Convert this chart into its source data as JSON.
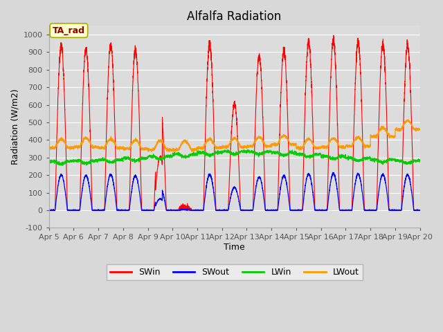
{
  "title": "Alfalfa Radiation",
  "xlabel": "Time",
  "ylabel": "Radiation (W/m2)",
  "ylim": [
    -100,
    1050
  ],
  "yticks": [
    -100,
    0,
    100,
    200,
    300,
    400,
    500,
    600,
    700,
    800,
    900,
    1000
  ],
  "xlim_days": [
    0,
    15
  ],
  "date_labels": [
    "Apr 5",
    "Apr 6",
    "Apr 7",
    "Apr 8",
    "Apr 9",
    "Apr 10",
    "Apr 11",
    "Apr 12",
    "Apr 13",
    "Apr 14",
    "Apr 15",
    "Apr 16",
    "Apr 17",
    "Apr 18",
    "Apr 19",
    "Apr 20"
  ],
  "legend_labels": [
    "SWin",
    "SWout",
    "LWin",
    "LWout"
  ],
  "legend_colors": [
    "#ff0000",
    "#0000ff",
    "#00cc00",
    "#ff9900"
  ],
  "fig_bg_color": "#d8d8d8",
  "plot_bg_color": "#dcdcdc",
  "annotation_text": "TA_rad",
  "annotation_bg": "#ffffcc",
  "annotation_border": "#aaaa00",
  "annotation_text_color": "#880000",
  "title_fontsize": 12,
  "axis_label_fontsize": 9,
  "tick_fontsize": 8
}
